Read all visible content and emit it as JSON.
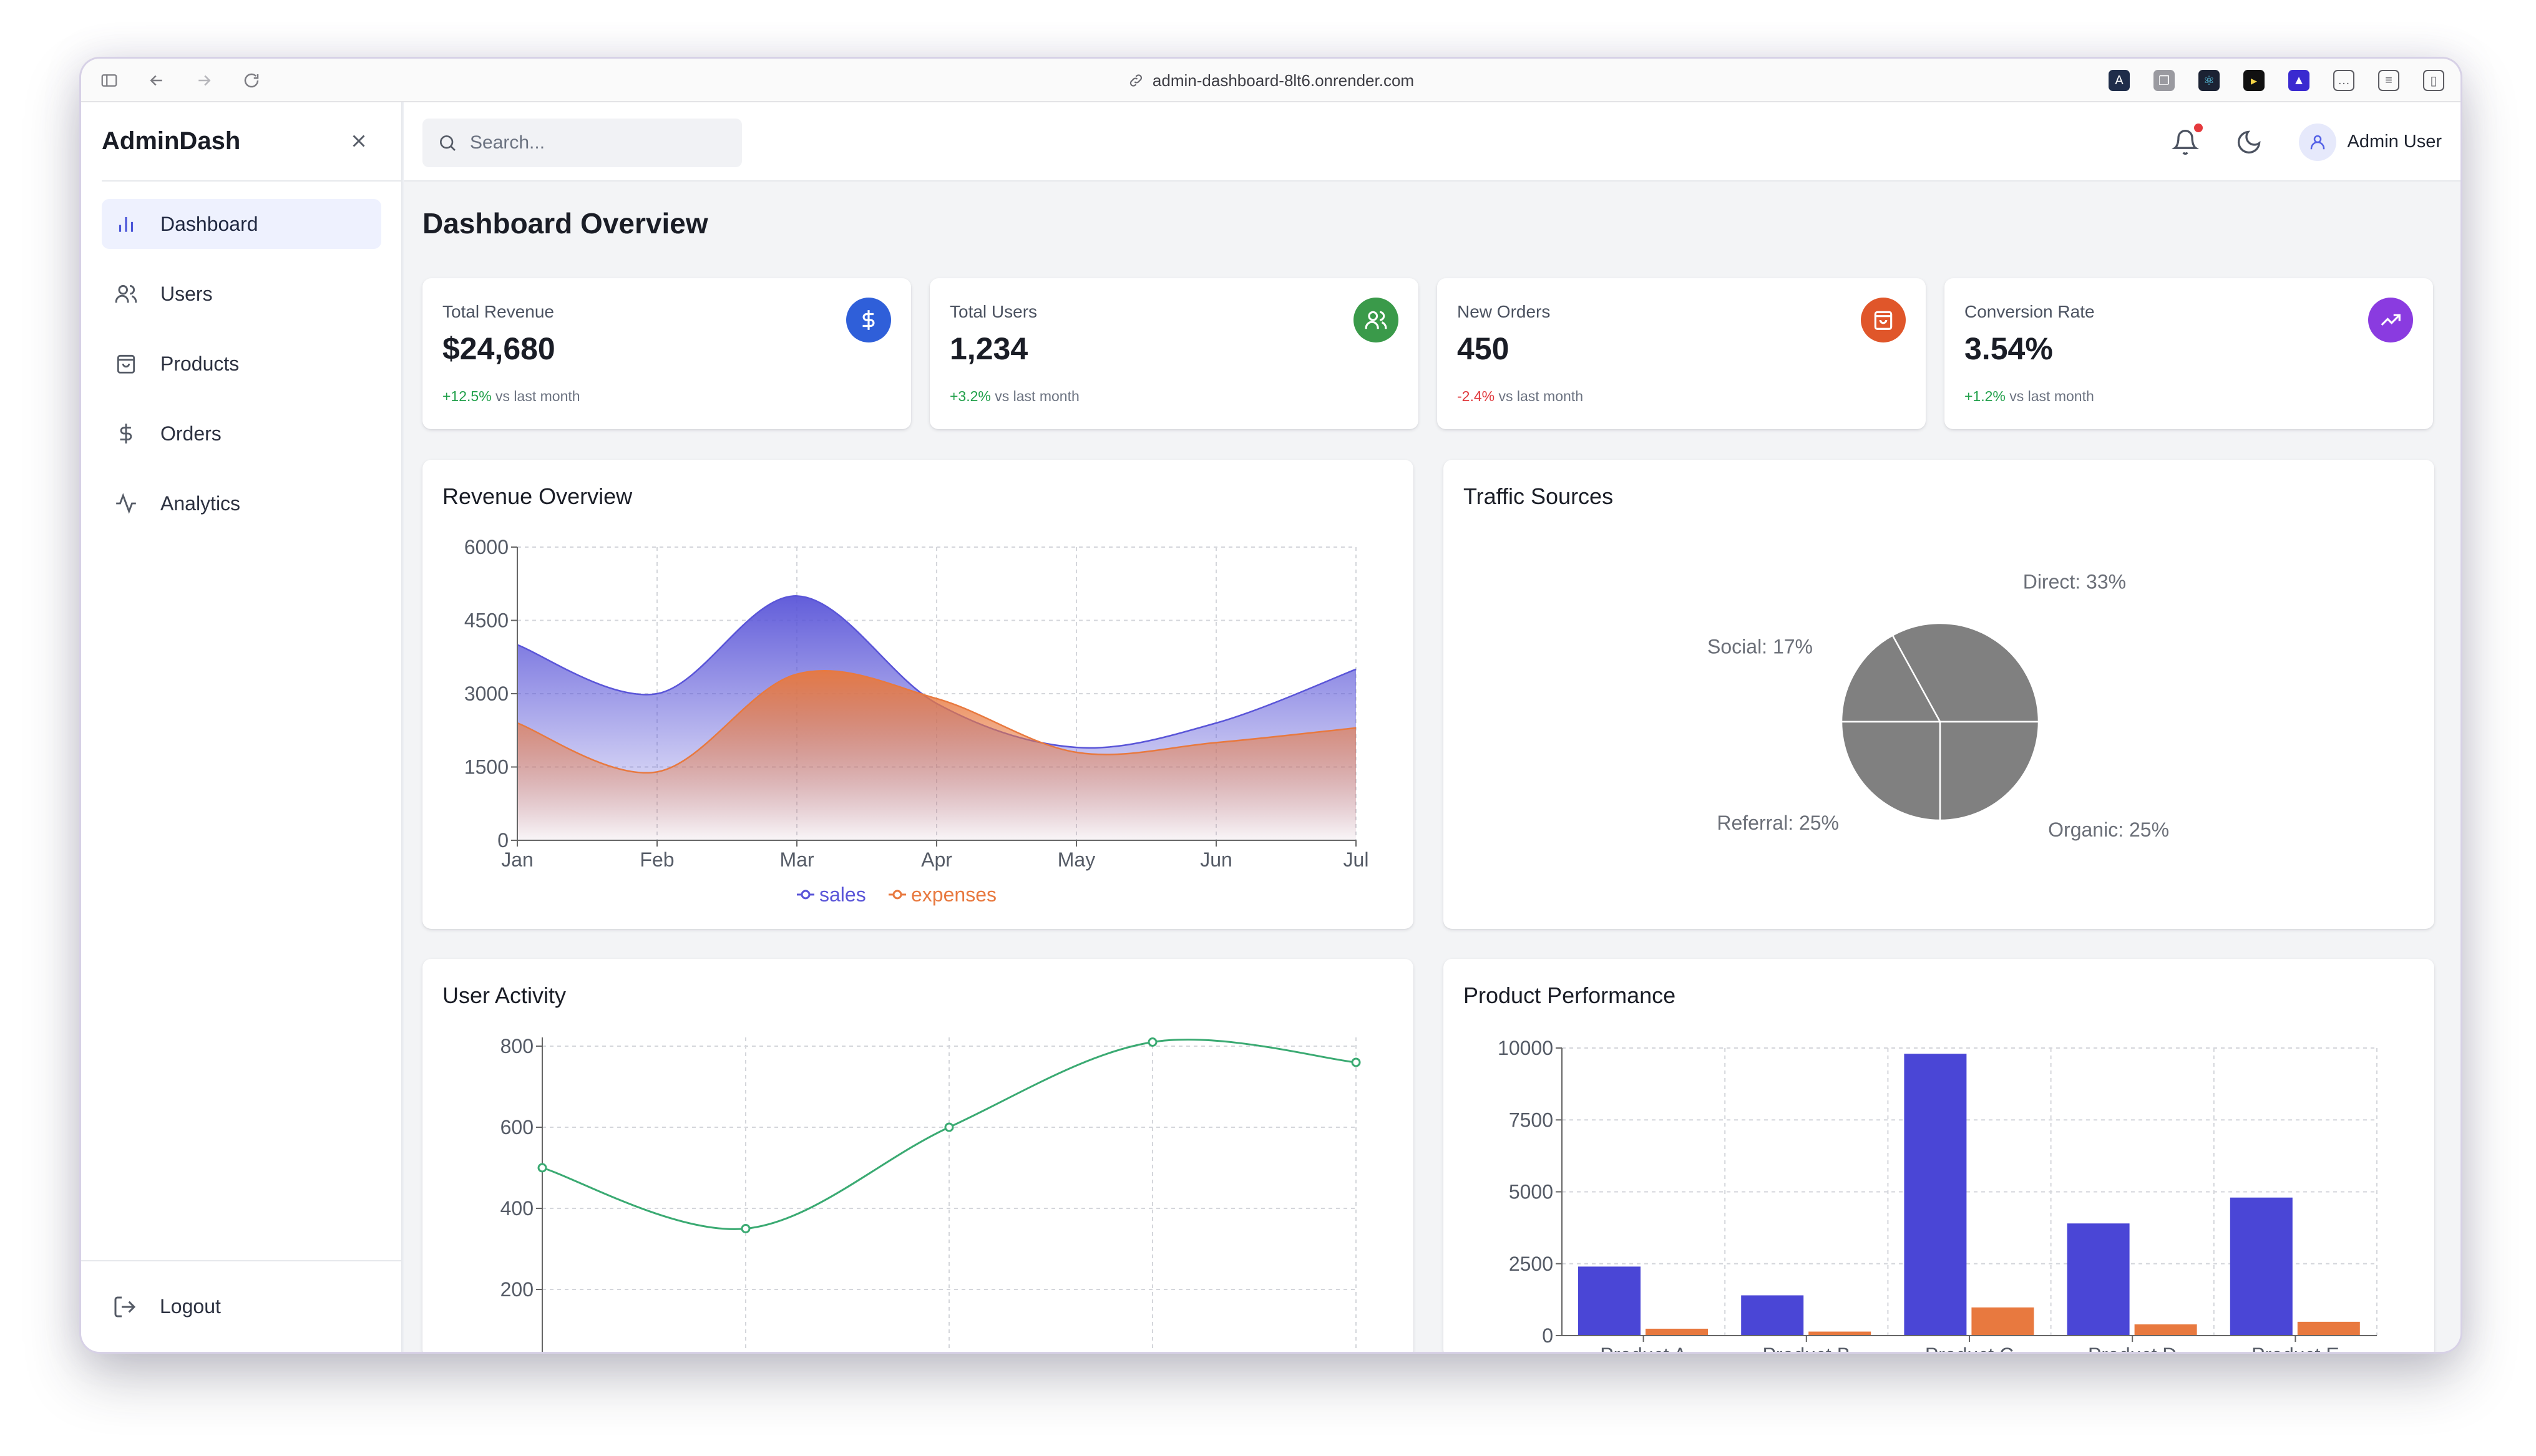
{
  "browser": {
    "url": "admin-dashboard-8lt6.onrender.com"
  },
  "sidebar": {
    "brand": "AdminDash",
    "items": [
      {
        "label": "Dashboard",
        "icon": "bar-chart-icon",
        "active": true
      },
      {
        "label": "Users",
        "icon": "users-icon"
      },
      {
        "label": "Products",
        "icon": "shopping-bag-icon"
      },
      {
        "label": "Orders",
        "icon": "dollar-icon"
      },
      {
        "label": "Analytics",
        "icon": "activity-icon"
      }
    ],
    "logout_label": "Logout"
  },
  "topbar": {
    "search_placeholder": "Search...",
    "user_name": "Admin User"
  },
  "page": {
    "title": "Dashboard Overview"
  },
  "stats": [
    {
      "label": "Total Revenue",
      "value": "$24,680",
      "change": "+12.5%",
      "direction": "up",
      "suffix": "vs last month",
      "icon": "dollar-icon",
      "color": "#2f5fd9"
    },
    {
      "label": "Total Users",
      "value": "1,234",
      "change": "+3.2%",
      "direction": "up",
      "suffix": "vs last month",
      "icon": "users-icon",
      "color": "#3a9a4a"
    },
    {
      "label": "New Orders",
      "value": "450",
      "change": "-2.4%",
      "direction": "down",
      "suffix": "vs last month",
      "icon": "shopping-bag-icon",
      "color": "#e0562a"
    },
    {
      "label": "Conversion Rate",
      "value": "3.54%",
      "change": "+1.2%",
      "direction": "up",
      "suffix": "vs last month",
      "icon": "trending-up-icon",
      "color": "#8a3be0"
    }
  ],
  "panels": {
    "revenue_title": "Revenue Overview",
    "traffic_title": "Traffic Sources",
    "activity_title": "User Activity",
    "product_title": "Product Performance"
  },
  "chart_data": [
    {
      "type": "area",
      "title": "Revenue Overview",
      "categories": [
        "Jan",
        "Feb",
        "Mar",
        "Apr",
        "May",
        "Jun",
        "Jul"
      ],
      "series": [
        {
          "name": "sales",
          "values": [
            4000,
            3000,
            5000,
            2800,
            1900,
            2400,
            3500
          ],
          "color": "#5a55d8"
        },
        {
          "name": "expenses",
          "values": [
            2400,
            1400,
            3400,
            2900,
            1800,
            2000,
            2300
          ],
          "color": "#e8793f"
        }
      ],
      "ylim": [
        0,
        6000
      ],
      "yticks": [
        0,
        1500,
        3000,
        4500,
        6000
      ],
      "legend": "bottom"
    },
    {
      "type": "pie",
      "title": "Traffic Sources",
      "slices": [
        {
          "label": "Direct: 33%",
          "value": 33
        },
        {
          "label": "Social: 17%",
          "value": 17
        },
        {
          "label": "Referral: 25%",
          "value": 25
        },
        {
          "label": "Organic: 25%",
          "value": 25
        }
      ],
      "fill": "#808080"
    },
    {
      "type": "line",
      "title": "User Activity",
      "x": [
        1,
        2,
        3,
        4,
        5
      ],
      "values": [
        500,
        350,
        600,
        810,
        760
      ],
      "yticks": [
        200,
        400,
        600,
        800
      ],
      "ylim": [
        0,
        850
      ],
      "color": "#3aaa72"
    },
    {
      "type": "bar",
      "title": "Product Performance",
      "categories": [
        "Product A",
        "Product B",
        "Product C",
        "Product D",
        "Product E"
      ],
      "series": [
        {
          "name": "",
          "values": [
            2400,
            1400,
            9800,
            3900,
            4800
          ],
          "color": "#4a46d6"
        },
        {
          "name": "",
          "values": [
            240,
            140,
            980,
            390,
            480
          ],
          "color": "#e8793f"
        }
      ],
      "ylim": [
        0,
        10000
      ],
      "yticks": [
        0,
        2500,
        5000,
        7500,
        10000
      ]
    }
  ]
}
